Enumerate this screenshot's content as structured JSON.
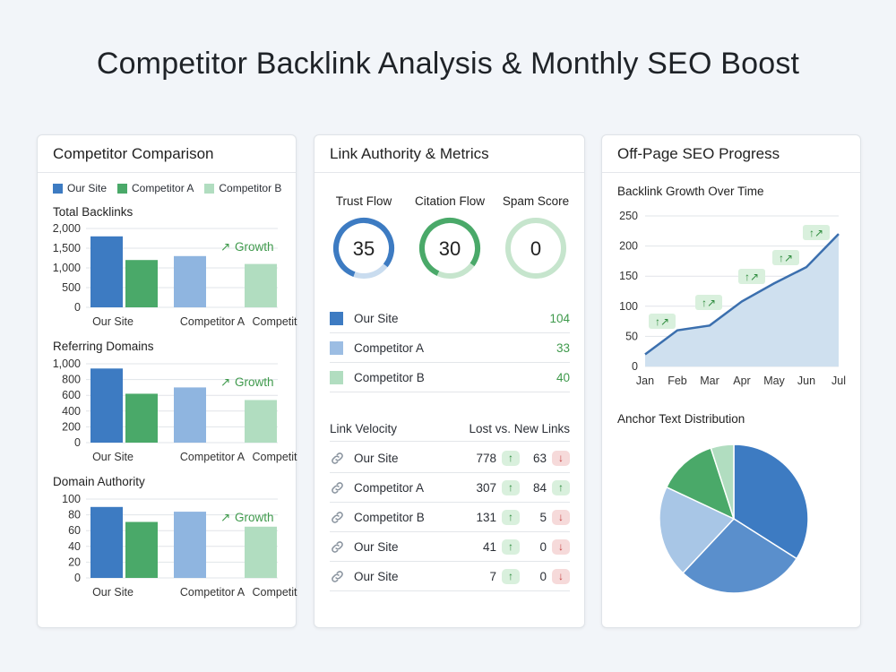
{
  "page_title": "Competitor Backlink Analysis & Monthly SEO Boost",
  "colors": {
    "our_site": "#3d7bc2",
    "competitor_a": "#4aa969",
    "competitor_b": "#b1ddc0",
    "competitor_a_light": "#8fb5e0",
    "green_text": "#3f9a4c",
    "area_fill": "#cfe0ef",
    "line": "#3b6fae"
  },
  "comparison": {
    "title": "Competitor Comparison",
    "legend": [
      "Our Site",
      "Competitor A",
      "Competitor B"
    ],
    "growth_label": "Growth",
    "growth_icon": "trend-up-arrow-icon"
  },
  "metrics_card": {
    "title": "Link Authority & Metrics",
    "rings": [
      {
        "label": "Trust Flow",
        "value": "35",
        "fraction": 0.35
      },
      {
        "label": "Citation Flow",
        "value": "30",
        "fraction": 0.3
      },
      {
        "label": "Spam Score",
        "value": "0",
        "fraction": 0.0
      }
    ],
    "metric_rows": [
      {
        "name": "Our Site",
        "value": "104"
      },
      {
        "name": "Competitor A",
        "value": "33"
      },
      {
        "name": "Competitor B",
        "value": "40"
      }
    ],
    "velocity": {
      "header_left": "Link Velocity",
      "header_right": "Lost vs. New Links",
      "rows": [
        {
          "name": "Our Site",
          "lost": "778",
          "lost_dir": "up",
          "new": "63",
          "new_dir": "down"
        },
        {
          "name": "Competitor A",
          "lost": "307",
          "lost_dir": "up",
          "new": "84",
          "new_dir": "up"
        },
        {
          "name": "Competitor B",
          "lost": "131",
          "lost_dir": "up",
          "new": "5",
          "new_dir": "down"
        },
        {
          "name": "Our Site",
          "lost": "41",
          "lost_dir": "up",
          "new": "0",
          "new_dir": "down"
        },
        {
          "name": "Our Site",
          "lost": "7",
          "lost_dir": "up",
          "new": "0",
          "new_dir": "down"
        }
      ]
    }
  },
  "progress_card": {
    "title": "Off-Page SEO Progress",
    "growth_title": "Backlink Growth Over Time",
    "anchor_title": "Anchor Text Distribution",
    "badge_icon": "trend-up-arrows-icon"
  },
  "chart_data": [
    {
      "type": "bar",
      "title": "Total Backlinks",
      "categories": [
        "Our Site",
        "Competitor A",
        "Competitor B"
      ],
      "series": [
        {
          "name": "Our Site",
          "values": [
            1800,
            null,
            null
          ]
        },
        {
          "name": "Competitor A",
          "values": [
            1200,
            1300,
            1100
          ]
        }
      ],
      "bars": [
        1800,
        1200,
        1300,
        1100
      ],
      "yticks": [
        "2,000",
        "1,500",
        "1,000",
        "500",
        "0"
      ],
      "ylim": [
        0,
        2000
      ]
    },
    {
      "type": "bar",
      "title": "Referring Domains",
      "categories": [
        "Our Site",
        "Competitor A",
        "Competitor B"
      ],
      "bars": [
        940,
        620,
        700,
        540
      ],
      "yticks": [
        "1,000",
        "800",
        "600",
        "400",
        "200",
        "0"
      ],
      "ylim": [
        0,
        1000
      ]
    },
    {
      "type": "bar",
      "title": "Domain Authority",
      "categories": [
        "Our Site",
        "Competitor A",
        "Competitor B"
      ],
      "bars": [
        90,
        71,
        84,
        65
      ],
      "yticks": [
        "100",
        "80",
        "60",
        "40",
        "20",
        "0"
      ],
      "ylim": [
        0,
        100
      ]
    },
    {
      "type": "area",
      "title": "Backlink Growth Over Time",
      "x": [
        "Jan",
        "Feb",
        "Mar",
        "Apr",
        "May",
        "Jun",
        "Jul"
      ],
      "values": [
        20,
        60,
        68,
        108,
        138,
        165,
        220
      ],
      "yticks": [
        "250",
        "200",
        "150",
        "100",
        "50",
        "0"
      ],
      "ylim": [
        0,
        250
      ],
      "badges_at": [
        0.5,
        1.9,
        3.0,
        4.0,
        5.0
      ]
    },
    {
      "type": "pie",
      "title": "Anchor Text Distribution",
      "slices": [
        {
          "value": 34,
          "color": "#3d7bc2"
        },
        {
          "value": 28,
          "color": "#5a8fcc"
        },
        {
          "value": 20,
          "color": "#a8c6e6"
        },
        {
          "value": 13,
          "color": "#4aa969"
        },
        {
          "value": 5,
          "color": "#b1ddc0"
        }
      ]
    }
  ]
}
